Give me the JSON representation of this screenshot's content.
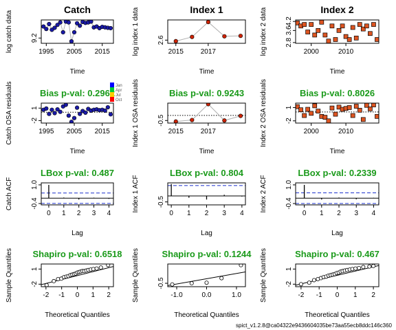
{
  "footer": "spict_v1.2.8@ca04322e9436604035be73aa55ecb8ddc146c360",
  "legend": {
    "labels": [
      "Jan",
      "Apr",
      "Jul",
      "Oct"
    ],
    "colors": [
      "#0000ff",
      "#00cc33",
      "#ffcc00",
      "#ff0000"
    ]
  },
  "colors": {
    "catch": "#1a1aa8",
    "index1": "#cc2200",
    "index2": "#dd5522",
    "pval": "#1a9a1a"
  },
  "chart_data": [
    {
      "id": "catch_data",
      "type": "scatter",
      "title": "Catch",
      "xlabel": "Time",
      "ylabel": "log catch data",
      "xlim": [
        1993.2,
        2019
      ],
      "ylim": [
        8.88,
        10.3
      ],
      "xticks": [
        1995,
        2005,
        2015
      ],
      "yticks": [
        9.2
      ],
      "line": true,
      "marker": "circle",
      "color": "#1a1aa8",
      "x": [
        1994,
        1995,
        1996,
        1997,
        1998,
        1999,
        2000,
        2001,
        2002,
        2003,
        2004,
        2005,
        2006,
        2007,
        2008,
        2009,
        2010,
        2011,
        2012,
        2013,
        2014,
        2015,
        2016,
        2017,
        2018
      ],
      "y": [
        9.9,
        9.75,
        10.05,
        9.7,
        9.82,
        10.0,
        10.15,
        9.55,
        10.2,
        10.15,
        9.0,
        9.55,
        10.1,
        9.95,
        10.18,
        10.12,
        10.15,
        10.2,
        9.85,
        9.9,
        9.8,
        9.88,
        9.85,
        9.82,
        9.8
      ]
    },
    {
      "id": "index1_data",
      "type": "scatter",
      "title": "Index 1",
      "xlabel": "Time",
      "ylabel": "log index 1 data",
      "xlim": [
        2014.5,
        2019.3
      ],
      "ylim": [
        2.45,
        3.55
      ],
      "xticks": [
        2015,
        2017
      ],
      "yticks": [
        2.6
      ],
      "line": true,
      "marker": "circle",
      "color": "#cc2200",
      "x": [
        2015,
        2016,
        2017,
        2018,
        2019
      ],
      "y": [
        2.55,
        2.75,
        3.45,
        2.78,
        2.8
      ]
    },
    {
      "id": "index2_data",
      "type": "scatter",
      "title": "Index 2",
      "xlabel": "Time",
      "ylabel": "log index 2 data",
      "xlim": [
        1995.5,
        2019.5
      ],
      "ylim": [
        2.75,
        4.3
      ],
      "xticks": [
        2000,
        2010
      ],
      "yticks": [
        2.8,
        3.6,
        4.2
      ],
      "line": false,
      "marker": "square",
      "color": "#dd5522",
      "x": [
        1996,
        1997,
        1998,
        1999,
        2000,
        2001,
        2002,
        2003,
        2004,
        2005,
        2006,
        2007,
        2008,
        2009,
        2010,
        2011,
        2012,
        2013,
        2014,
        2015,
        2016,
        2017,
        2018,
        2019
      ],
      "y": [
        4.1,
        3.9,
        4.0,
        3.5,
        4.0,
        3.3,
        3.6,
        4.15,
        3.3,
        2.9,
        3.9,
        3.0,
        3.6,
        3.9,
        3.2,
        3.0,
        3.8,
        3.1,
        4.0,
        3.7,
        3.9,
        3.4,
        4.0,
        3.0
      ]
    },
    {
      "id": "catch_osa",
      "type": "scatter",
      "title": "Bias p-val: 0.2962",
      "xlabel": "Time",
      "ylabel": "Catch OSA residuals",
      "xlim": [
        1993.2,
        2019
      ],
      "ylim": [
        -2.6,
        2.2
      ],
      "xticks": [
        1995,
        2005,
        2015
      ],
      "yticks": [
        -2,
        1
      ],
      "line": false,
      "marker": "circle",
      "color": "#1a1aa8",
      "refline": 0,
      "refline_style": "dotted",
      "x": [
        1994,
        1995,
        1996,
        1997,
        1998,
        1999,
        2000,
        2001,
        2002,
        2003,
        2004,
        2005,
        2006,
        2007,
        2008,
        2009,
        2010,
        2011,
        2012,
        2013,
        2014,
        2015,
        2016,
        2017,
        2018
      ],
      "y": [
        0.6,
        0.9,
        -0.4,
        0.6,
        -0.2,
        0.7,
        0.1,
        1.4,
        1.8,
        -0.8,
        -2.3,
        -1.4,
        1.1,
        -0.4,
        0.3,
        -0.1,
        0.8,
        0.4,
        0.6,
        0.7,
        0.5,
        0.6,
        0.4,
        1.2,
        -0.5
      ]
    },
    {
      "id": "index1_osa",
      "type": "scatter",
      "title": "Bias p-val: 0.9243",
      "xlabel": "Time",
      "ylabel": "Index 1 OSA residuals",
      "xlim": [
        2014.5,
        2019.3
      ],
      "ylim": [
        -0.75,
        1.2
      ],
      "xticks": [
        2015,
        2017
      ],
      "yticks": [
        -0.5
      ],
      "line": true,
      "marker": "circle",
      "color": "#cc2200",
      "refline": 0,
      "refline_style": "dotted",
      "x": [
        2015,
        2016,
        2017,
        2018,
        2019
      ],
      "y": [
        -0.6,
        -0.45,
        1.1,
        -0.5,
        -0.05
      ]
    },
    {
      "id": "index2_osa",
      "type": "scatter",
      "title": "Bias p-val: 0.8026",
      "xlabel": "Time",
      "ylabel": "Index 2 OSA residuals",
      "xlim": [
        1995.5,
        2019.5
      ],
      "ylim": [
        -2.5,
        2.0
      ],
      "xticks": [
        2000,
        2010
      ],
      "yticks": [
        -2,
        1
      ],
      "line": false,
      "marker": "square",
      "color": "#dd5522",
      "refline": 0,
      "refline_style": "dotted",
      "x": [
        1996,
        1997,
        1998,
        1999,
        2000,
        2001,
        2002,
        2003,
        2004,
        2005,
        2006,
        2007,
        2008,
        2009,
        2010,
        2011,
        2012,
        2013,
        2014,
        2015,
        2016,
        2017,
        2018,
        2019
      ],
      "y": [
        1.2,
        0.5,
        -0.8,
        0.6,
        -0.3,
        1.4,
        0.2,
        -1.0,
        -1.2,
        -2.0,
        0.9,
        -0.5,
        1.1,
        0.6,
        0.8,
        1.0,
        -0.8,
        1.3,
        0.4,
        -1.7,
        1.5,
        0.7,
        1.6,
        -1.0
      ]
    },
    {
      "id": "catch_acf",
      "type": "bar",
      "title": "LBox p-val: 0.487",
      "xlabel": "Lag",
      "ylabel": "Catch ACF",
      "xlim": [
        -0.5,
        4.3
      ],
      "ylim": [
        -0.5,
        1.15
      ],
      "xticks": [
        0,
        1,
        2,
        3,
        4
      ],
      "yticks": [
        -0.4,
        1.0
      ],
      "lags": [
        0,
        1,
        2,
        3,
        4
      ],
      "values": [
        1.0,
        0.05,
        -0.1,
        0.04,
        -0.05
      ],
      "ci": 0.39,
      "refline": 0
    },
    {
      "id": "index1_acf",
      "type": "bar",
      "title": "LBox p-val: 0.804",
      "xlabel": "Lag",
      "ylabel": "Index 1 ACF",
      "xlim": [
        -0.2,
        4.2
      ],
      "ylim": [
        -0.75,
        1.1
      ],
      "xticks": [
        0,
        1,
        2,
        3,
        4
      ],
      "yticks": [
        -0.5
      ],
      "lags": [
        0,
        1,
        2,
        3,
        4
      ],
      "values": [
        1.0,
        -0.15,
        -0.3,
        0.1,
        -0.05
      ],
      "ci": 0.876,
      "refline": 0
    },
    {
      "id": "index2_acf",
      "type": "bar",
      "title": "LBox p-val: 0.2339",
      "xlabel": "Lag",
      "ylabel": "Index 2 ACF",
      "xlim": [
        -0.5,
        4.3
      ],
      "ylim": [
        -0.5,
        1.15
      ],
      "xticks": [
        0,
        1,
        2,
        3,
        4
      ],
      "yticks": [
        -0.4,
        1.0
      ],
      "lags": [
        0,
        1,
        2,
        3,
        4
      ],
      "values": [
        1.0,
        -0.1,
        0.05,
        -0.08,
        0.03
      ],
      "ci": 0.4,
      "refline": 0
    },
    {
      "id": "catch_qq",
      "type": "scatter",
      "title": "Shapiro p-val: 0.6518",
      "xlabel": "Theoretical Quantiles",
      "ylabel": "Sample Quantiles",
      "xlim": [
        -2.3,
        2.3
      ],
      "ylim": [
        -2.5,
        2.0
      ],
      "xticks": [
        -2,
        -1,
        0,
        1,
        2
      ],
      "yticks": [
        -2,
        1
      ],
      "marker": "open-circle",
      "qqline": [
        -2.3,
        -2.1,
        2.3,
        1.5
      ],
      "x": [
        -1.96,
        -1.5,
        -1.23,
        -1.02,
        -0.85,
        -0.7,
        -0.57,
        -0.44,
        -0.32,
        -0.21,
        -0.1,
        0.0,
        0.1,
        0.21,
        0.32,
        0.44,
        0.57,
        0.7,
        0.85,
        1.02,
        1.23,
        1.5,
        1.96
      ],
      "y": [
        -2.2,
        -1.4,
        -1.0,
        -0.9,
        -0.6,
        -0.5,
        -0.4,
        -0.2,
        -0.1,
        0.0,
        0.1,
        0.3,
        0.4,
        0.5,
        0.6,
        0.6,
        0.7,
        0.8,
        0.9,
        1.0,
        1.1,
        1.3,
        1.8
      ]
    },
    {
      "id": "index1_qq",
      "type": "scatter",
      "title": "Shapiro p-val: 0.1244",
      "xlabel": "Theoretical Quantiles",
      "ylabel": "Sample Quantiles",
      "xlim": [
        -1.3,
        1.3
      ],
      "ylim": [
        -0.8,
        1.2
      ],
      "xticks": [
        -1.0,
        0.0,
        1.0
      ],
      "yticks": [
        -0.5
      ],
      "marker": "open-circle",
      "qqline": [
        -1.3,
        -0.7,
        1.3,
        0.5
      ],
      "x": [
        -1.15,
        -0.5,
        0.0,
        0.5,
        1.15
      ],
      "y": [
        -0.6,
        -0.5,
        -0.45,
        -0.05,
        1.1
      ]
    },
    {
      "id": "index2_qq",
      "type": "scatter",
      "title": "Shapiro p-val: 0.467",
      "xlabel": "Theoretical Quantiles",
      "ylabel": "Sample Quantiles",
      "xlim": [
        -2.3,
        2.3
      ],
      "ylim": [
        -2.5,
        2.0
      ],
      "xticks": [
        -2,
        -1,
        0,
        1,
        2
      ],
      "yticks": [
        -2,
        1
      ],
      "marker": "open-circle",
      "qqline": [
        -2.3,
        -2.2,
        2.3,
        1.7
      ],
      "x": [
        -2.0,
        -1.55,
        -1.28,
        -1.07,
        -0.9,
        -0.75,
        -0.61,
        -0.48,
        -0.36,
        -0.25,
        -0.14,
        -0.03,
        0.08,
        0.19,
        0.3,
        0.42,
        0.55,
        0.69,
        0.84,
        1.01,
        1.2,
        1.44,
        1.78,
        2.0
      ],
      "y": [
        -2.0,
        -1.7,
        -1.2,
        -1.0,
        -0.8,
        -0.6,
        -0.5,
        -0.3,
        -0.2,
        -0.1,
        0.0,
        0.2,
        0.3,
        0.5,
        0.6,
        0.7,
        0.8,
        0.9,
        1.0,
        1.1,
        1.2,
        1.4,
        1.5,
        1.6
      ]
    }
  ]
}
